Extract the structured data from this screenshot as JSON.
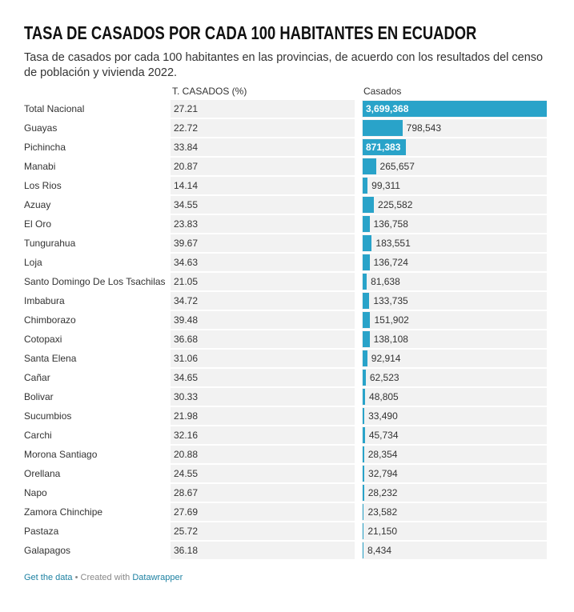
{
  "header": {
    "title": "TASA DE CASADOS POR CADA 100 HABITANTES EN ECUADOR",
    "subtitle": "Tasa de casados por cada 100 habitantes en las provincias, de acuerdo con los resultados del censo de población y vivienda 2022."
  },
  "table": {
    "columns": {
      "rate": "T. CASADOS (%)",
      "married": "Casados"
    },
    "rows": [
      {
        "name": "Total Nacional",
        "rate": 27.21,
        "married": {
          "value": 3699368,
          "label": "3,699,368"
        }
      },
      {
        "name": "Guayas",
        "rate": 22.72,
        "married": {
          "value": 798543,
          "label": "798,543"
        }
      },
      {
        "name": "Pichincha",
        "rate": 33.84,
        "married": {
          "value": 871383,
          "label": "871,383"
        }
      },
      {
        "name": "Manabi",
        "rate": 20.87,
        "married": {
          "value": 265657,
          "label": "265,657"
        }
      },
      {
        "name": "Los Rios",
        "rate": 14.14,
        "married": {
          "value": 99311,
          "label": "99,311"
        }
      },
      {
        "name": "Azuay",
        "rate": 34.55,
        "married": {
          "value": 225582,
          "label": "225,582"
        }
      },
      {
        "name": "El Oro",
        "rate": 23.83,
        "married": {
          "value": 136758,
          "label": "136,758"
        }
      },
      {
        "name": "Tungurahua",
        "rate": 39.67,
        "married": {
          "value": 183551,
          "label": "183,551"
        }
      },
      {
        "name": "Loja",
        "rate": 34.63,
        "married": {
          "value": 136724,
          "label": "136,724"
        }
      },
      {
        "name": "Santo Domingo De Los Tsachilas",
        "rate": 21.05,
        "married": {
          "value": 81638,
          "label": "81,638"
        }
      },
      {
        "name": "Imbabura",
        "rate": 34.72,
        "married": {
          "value": 133735,
          "label": "133,735"
        }
      },
      {
        "name": "Chimborazo",
        "rate": 39.48,
        "married": {
          "value": 151902,
          "label": "151,902"
        }
      },
      {
        "name": "Cotopaxi",
        "rate": 36.68,
        "married": {
          "value": 138108,
          "label": "138,108"
        }
      },
      {
        "name": "Santa Elena",
        "rate": 31.06,
        "married": {
          "value": 92914,
          "label": "92,914"
        }
      },
      {
        "name": "Cañar",
        "rate": 34.65,
        "married": {
          "value": 62523,
          "label": "62,523"
        }
      },
      {
        "name": "Bolivar",
        "rate": 30.33,
        "married": {
          "value": 48805,
          "label": "48,805"
        }
      },
      {
        "name": "Sucumbios",
        "rate": 21.98,
        "married": {
          "value": 33490,
          "label": "33,490"
        }
      },
      {
        "name": "Carchi",
        "rate": 32.16,
        "married": {
          "value": 45734,
          "label": "45,734"
        }
      },
      {
        "name": "Morona Santiago",
        "rate": 20.88,
        "married": {
          "value": 28354,
          "label": "28,354"
        }
      },
      {
        "name": "Orellana",
        "rate": 24.55,
        "married": {
          "value": 32794,
          "label": "32,794"
        }
      },
      {
        "name": "Napo",
        "rate": 28.67,
        "married": {
          "value": 28232,
          "label": "28,232"
        }
      },
      {
        "name": "Zamora Chinchipe",
        "rate": 27.69,
        "married": {
          "value": 23582,
          "label": "23,582"
        }
      },
      {
        "name": "Pastaza",
        "rate": 25.72,
        "married": {
          "value": 21150,
          "label": "21,150"
        }
      },
      {
        "name": "Galapagos",
        "rate": 36.18,
        "married": {
          "value": 8434,
          "label": "8,434"
        }
      }
    ]
  },
  "footer": {
    "link": "Get the data",
    "credit": "• Created with",
    "brand": "Datawrapper"
  }
}
